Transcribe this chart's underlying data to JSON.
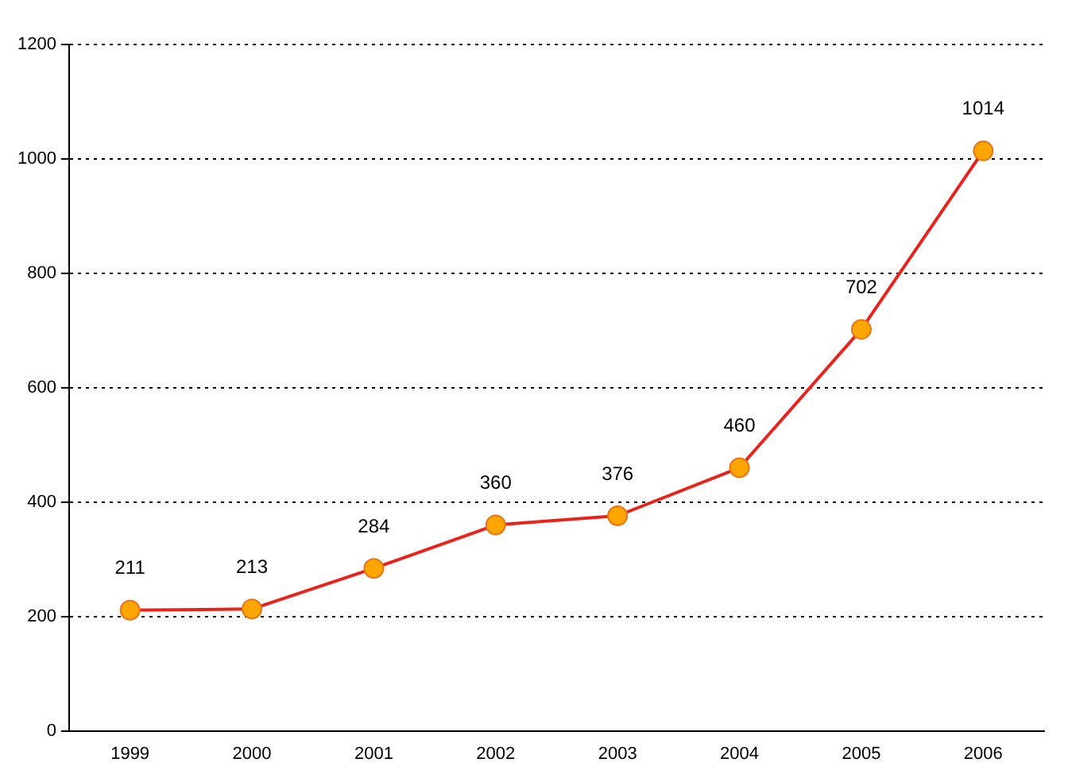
{
  "chart_data": {
    "type": "line",
    "categories": [
      "1999",
      "2000",
      "2001",
      "2002",
      "2003",
      "2004",
      "2005",
      "2006"
    ],
    "series": [
      {
        "color": "#e8231c",
        "values": [
          211,
          213,
          284,
          360,
          376,
          460,
          702,
          1014
        ]
      }
    ],
    "ylim": [
      0,
      1200
    ],
    "yticks": [
      0,
      200,
      400,
      600,
      800,
      1000,
      1200
    ],
    "grid": "y",
    "legend": false,
    "marker": "circle",
    "line_style": "solid",
    "data_labels": true
  }
}
